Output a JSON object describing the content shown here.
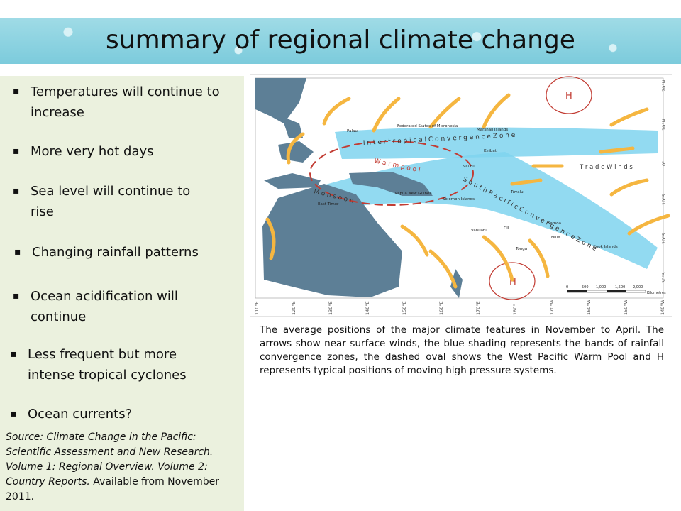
{
  "title": "summary of regional climate change",
  "bullets": [
    {
      "line1": "Temperatures will continue to",
      "line2": "increase"
    },
    {
      "line1": "More very hot days"
    },
    {
      "line1": "Sea level will continue to",
      "line2": "rise"
    },
    {
      "line1": "Changing rainfall patterns"
    },
    {
      "line1": "Ocean acidification will",
      "line2": "continue"
    },
    {
      "line1": "Less frequent but more",
      "line2": "intense tropical cyclones"
    },
    {
      "line1": "Ocean currents?"
    }
  ],
  "bullet_mark": "▪",
  "source": {
    "italic": "Source: Climate Change in the Pacific: Scientific Assessment and New Research. Volume 1: Regional Overview. Volume 2: Country Reports.",
    "normal": " Available from November 2011."
  },
  "map": {
    "labels": {
      "palau": "Palau",
      "fsm": "Federated States of Micronesia",
      "marshall": "Marshall Islands",
      "kiribati": "Kiribati",
      "nauru": "Nauru",
      "png": "Papua New Guinea",
      "solomon": "Solomon Islands",
      "tuvalu": "Tuvalu",
      "east_timor": "East Timor",
      "samoa": "Samoa",
      "vanuatu": "Vanuatu",
      "fiji": "Fiji",
      "niue": "Niue",
      "tonga": "Tonga",
      "cook": "Cook Islands",
      "itcz": "I n t e r t r o p i c a l   C o n v e r g e n c e   Z o n e",
      "spcz": "S o u t h   P a c i f i c   C o n v e r g e n c e   Z o n e",
      "warm_pool": "W a r m   p o o l",
      "monsoon": "M o n s o o n",
      "trade_winds": "T r a d e   W i n d s",
      "high": "H",
      "km_unit": "Kilometres"
    },
    "lat_ticks": [
      "20°N",
      "10°N",
      "0°",
      "10°S",
      "20°S",
      "30°S"
    ],
    "lon_ticks": [
      "110°E",
      "120°E",
      "130°E",
      "140°E",
      "150°E",
      "160°E",
      "170°E",
      "180°",
      "170°W",
      "160°W",
      "150°W",
      "140°W"
    ],
    "scale_ticks": [
      "0",
      "500",
      "1,000",
      "1,500",
      "2,000"
    ],
    "colors": {
      "ocean": "#ffffff",
      "land": "#5d7f96",
      "band": "#7fd3ee",
      "arrow": "#f5b640",
      "high": "#c23c33"
    }
  },
  "caption": "The average positions of the major climate features in November to April. The arrows show near surface winds, the blue shading represents the bands of rainfall convergence zones, the dashed oval shows the West Pacific Warm Pool and H represents typical positions of moving high pressure systems."
}
